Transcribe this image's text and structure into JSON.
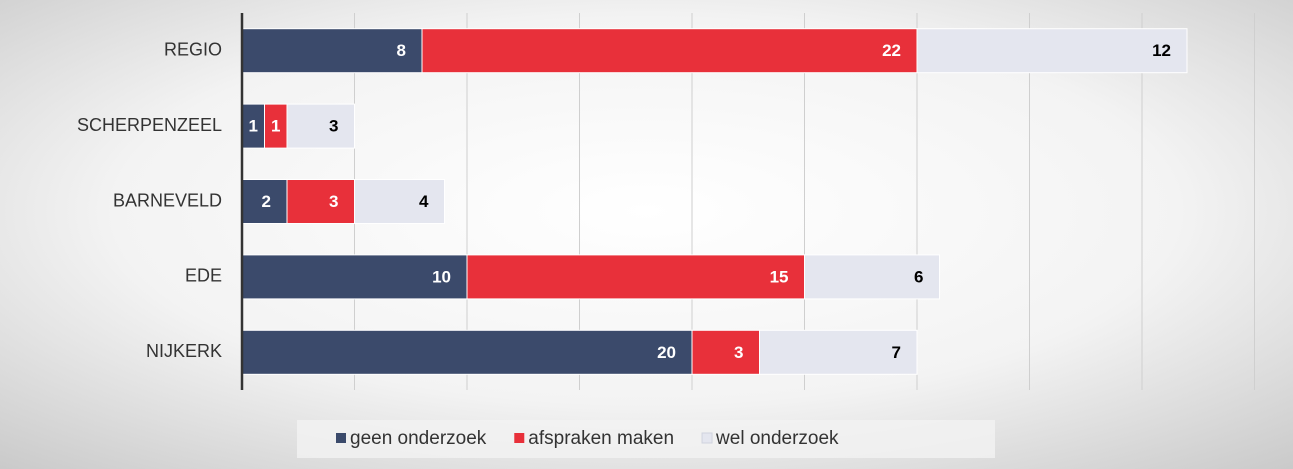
{
  "chart_data": {
    "type": "bar",
    "orientation": "horizontal",
    "stacked": true,
    "categories": [
      "REGIO",
      "SCHERPENZEEL",
      "BARNEVELD",
      "EDE",
      "NIJKERK"
    ],
    "series": [
      {
        "name": "geen onderzoek",
        "color": "#3b4a6b",
        "label_color": "#ffffff",
        "values": [
          8,
          1,
          2,
          10,
          20
        ]
      },
      {
        "name": "afspraken maken",
        "color": "#e8303a",
        "label_color": "#ffffff",
        "values": [
          22,
          1,
          3,
          15,
          3
        ]
      },
      {
        "name": "wel onderzoek",
        "color": "#e4e6ef",
        "label_color": "#000000",
        "values": [
          12,
          3,
          4,
          6,
          7
        ]
      }
    ],
    "xlim": [
      0,
      45
    ],
    "xticks": [
      5,
      10,
      15,
      20,
      25,
      30,
      35,
      40,
      45
    ],
    "grid": true,
    "legend": "bottom"
  }
}
